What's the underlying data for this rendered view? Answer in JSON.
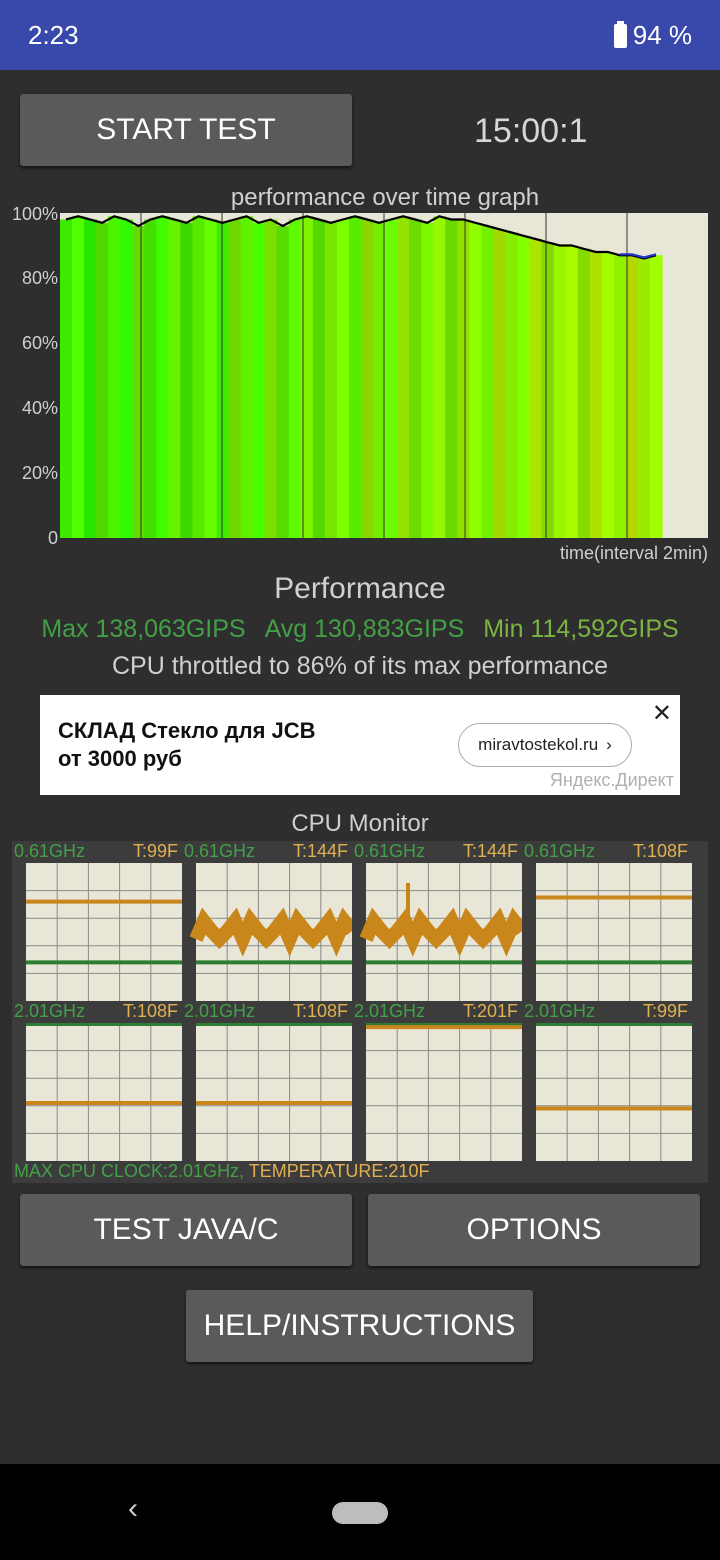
{
  "status": {
    "time": "2:23",
    "battery": "94 %",
    "battery_icon": "battery-icon"
  },
  "toolbar": {
    "start_label": "START TEST",
    "timer": "15:00:1"
  },
  "graph": {
    "title": "performance over time graph",
    "y_ticks": [
      "100%",
      "80%",
      "60%",
      "40%",
      "20%",
      "0"
    ],
    "x_label": "time(interval 2min)"
  },
  "chart_data": {
    "type": "area",
    "title": "performance over time graph",
    "xlabel": "time(interval 2min)",
    "ylabel": "",
    "ylim": [
      0,
      100
    ],
    "grid": true,
    "series": [
      {
        "values": [
          98,
          99,
          98,
          97,
          99,
          98,
          96,
          98,
          99,
          98,
          97,
          99,
          98,
          97,
          98,
          99,
          97,
          98,
          96,
          98,
          99,
          98,
          97,
          98,
          99,
          98,
          97,
          98,
          99,
          98,
          97,
          99,
          98,
          98,
          97,
          96,
          95,
          94,
          93,
          92,
          91,
          90,
          90,
          89,
          88,
          88,
          87,
          87,
          86,
          87
        ]
      }
    ]
  },
  "performance": {
    "title": "Performance",
    "max": "Max 138,063GIPS",
    "avg": "Avg 130,883GIPS",
    "min": "Min 114,592GIPS",
    "throttle": "CPU throttled to 86% of its max performance",
    "colors": {
      "max": "#43a047",
      "avg": "#43a047",
      "min": "#7cb342"
    }
  },
  "ad": {
    "line1": "СКЛАД Стекло для JCB",
    "line2": "от 3000 руб",
    "link": "miravtostekol.ru",
    "source": "Яндекс.Директ",
    "close_icon": "close-icon"
  },
  "cpu_monitor": {
    "title": "CPU Monitor",
    "cores": [
      {
        "ghz": "0.61GHz",
        "temp": "T:99F",
        "level": 0.72
      },
      {
        "ghz": "0.61GHz",
        "temp": "T:144F",
        "level": 0.55
      },
      {
        "ghz": "0.61GHz",
        "temp": "T:144F",
        "level": 0.55
      },
      {
        "ghz": "0.61GHz",
        "temp": "T:108F",
        "level": 0.75
      },
      {
        "ghz": "2.01GHz",
        "temp": "T:108F",
        "level": 0.42
      },
      {
        "ghz": "2.01GHz",
        "temp": "T:108F",
        "level": 0.42
      },
      {
        "ghz": "2.01GHz",
        "temp": "T:201F",
        "level": 0.97
      },
      {
        "ghz": "2.01GHz",
        "temp": "T:99F",
        "level": 0.38
      }
    ],
    "footer_clock": "MAX CPU CLOCK:2.01GHz,",
    "footer_temp": "TEMPERATURE:210F"
  },
  "buttons": {
    "java": "TEST JAVA/C",
    "options": "OPTIONS",
    "help": "HELP/INSTRUCTIONS"
  },
  "nav": {
    "back_icon": "back-icon",
    "home_icon": "home-icon"
  }
}
